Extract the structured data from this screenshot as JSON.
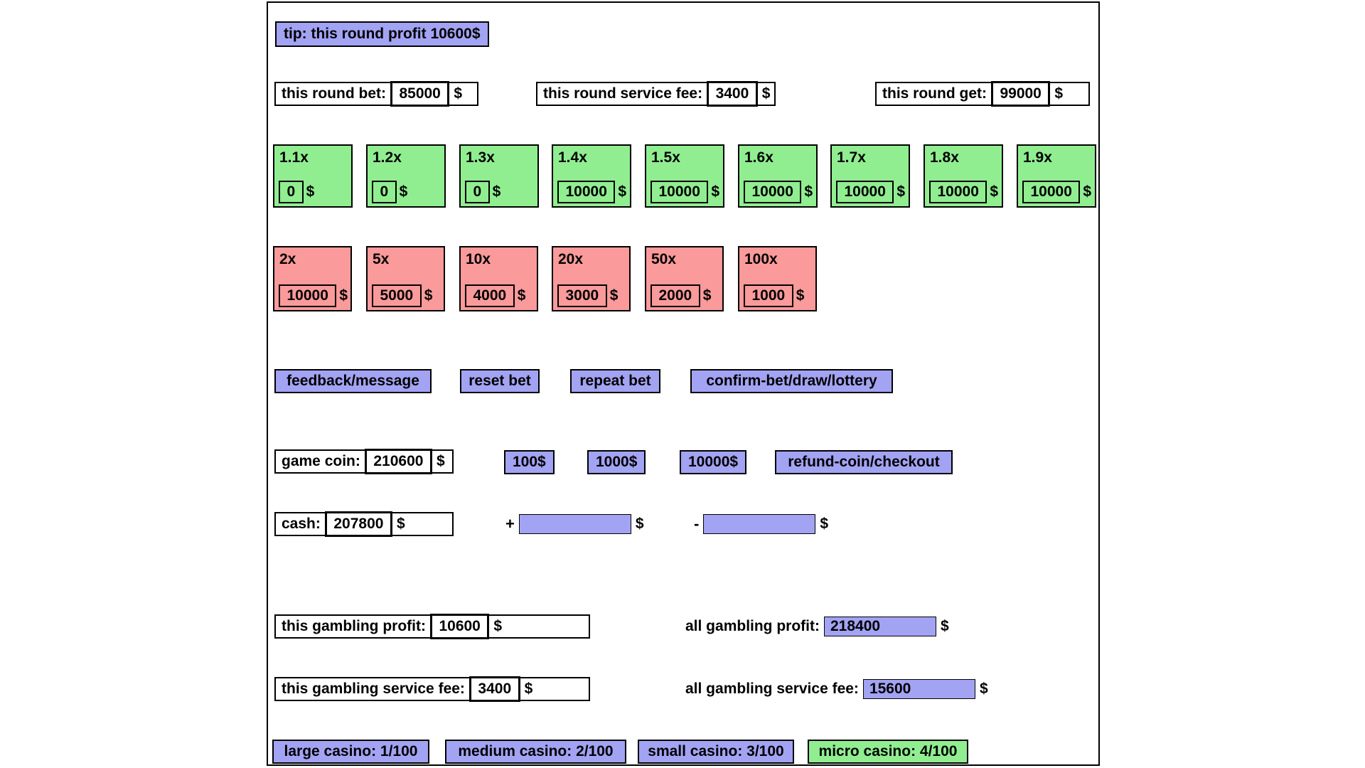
{
  "currency": "$",
  "tip": {
    "label": "tip: this round profit 10600$"
  },
  "round": {
    "bet_label": "this round bet:",
    "bet_value": "85000",
    "service_fee_label": "this round service fee:",
    "service_fee_value": "3400",
    "get_label": "this round get:",
    "get_value": "99000"
  },
  "multipliers": {
    "green": [
      {
        "label": "1.1x",
        "value": "0"
      },
      {
        "label": "1.2x",
        "value": "0"
      },
      {
        "label": "1.3x",
        "value": "0"
      },
      {
        "label": "1.4x",
        "value": "10000"
      },
      {
        "label": "1.5x",
        "value": "10000"
      },
      {
        "label": "1.6x",
        "value": "10000"
      },
      {
        "label": "1.7x",
        "value": "10000"
      },
      {
        "label": "1.8x",
        "value": "10000"
      },
      {
        "label": "1.9x",
        "value": "10000"
      }
    ],
    "red": [
      {
        "label": "2x",
        "value": "10000"
      },
      {
        "label": "5x",
        "value": "5000"
      },
      {
        "label": "10x",
        "value": "4000"
      },
      {
        "label": "20x",
        "value": "3000"
      },
      {
        "label": "50x",
        "value": "2000"
      },
      {
        "label": "100x",
        "value": "1000"
      }
    ]
  },
  "actions": {
    "feedback": "feedback/message",
    "reset": "reset bet",
    "repeat": "repeat bet",
    "confirm": "confirm-bet/draw/lottery"
  },
  "game_coin": {
    "label": "game coin:",
    "value": "210600",
    "add_100": "100$",
    "add_1000": "1000$",
    "add_10000": "10000$",
    "refund": "refund-coin/checkout"
  },
  "cash": {
    "label": "cash:",
    "value": "207800",
    "plus_sign": "+",
    "plus_value": "",
    "minus_sign": "-",
    "minus_value": ""
  },
  "gambling": {
    "this_profit_label": "this gambling profit:",
    "this_profit_value": "10600",
    "all_profit_label": "all gambling profit:",
    "all_profit_value": "218400",
    "this_fee_label": "this gambling service fee:",
    "this_fee_value": "3400",
    "all_fee_label": "all gambling service fee:",
    "all_fee_value": "15600"
  },
  "casinos": [
    {
      "label": "large casino: 1/100"
    },
    {
      "label": "medium casino: 2/100"
    },
    {
      "label": "small casino: 3/100"
    },
    {
      "label": "micro casino: 4/100"
    }
  ],
  "colors": {
    "purple": "#a3a3f3",
    "green": "#90ee90",
    "red": "#fa9a9a"
  }
}
